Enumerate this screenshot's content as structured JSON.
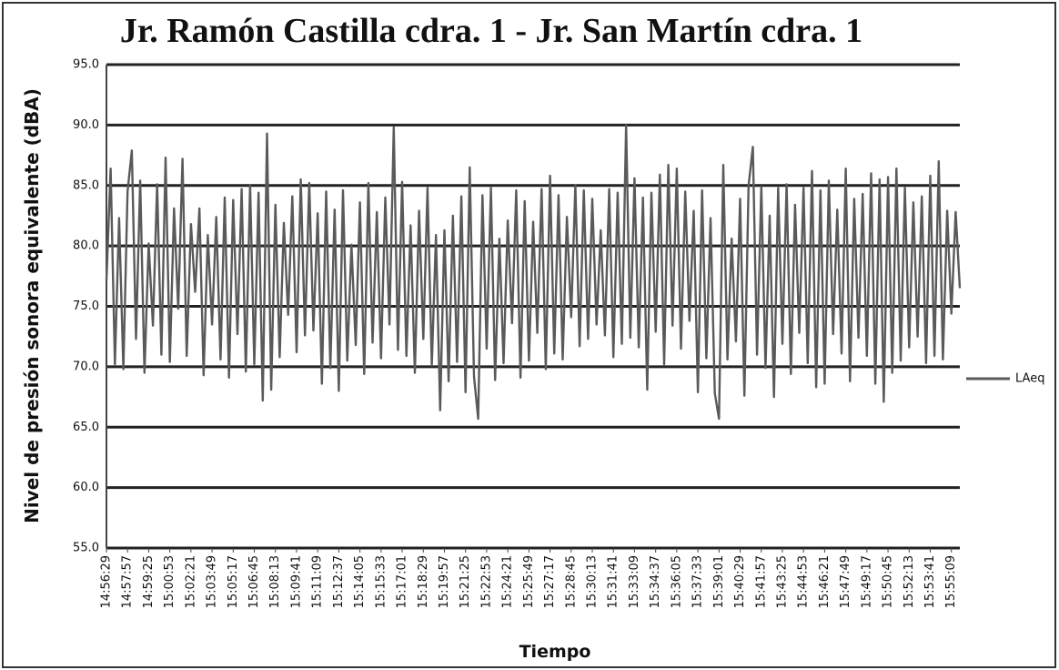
{
  "chart_data": {
    "type": "line",
    "title": "Jr. Ramón Castilla cdra. 1 - Jr. San Martín cdra. 1",
    "x_label": "Tiempo",
    "y_label": "Nivel de presión sonora equivalente (dBA)",
    "categories": [
      "14:56:29",
      null,
      null,
      null,
      null,
      "14:57:57",
      null,
      null,
      null,
      null,
      "14:59:25",
      null,
      null,
      null,
      null,
      "15:00:53",
      null,
      null,
      null,
      null,
      "15:02:21",
      null,
      null,
      null,
      null,
      "15:03:49",
      null,
      null,
      null,
      null,
      "15:05:17",
      null,
      null,
      null,
      null,
      "15:06:45",
      null,
      null,
      null,
      null,
      "15:08:13",
      null,
      null,
      null,
      null,
      "15:09:41",
      null,
      null,
      null,
      null,
      "15:11:09",
      null,
      null,
      null,
      null,
      "15:12:37",
      null,
      null,
      null,
      null,
      "15:14:05",
      null,
      null,
      null,
      null,
      "15:15:33",
      null,
      null,
      null,
      null,
      "15:17:01",
      null,
      null,
      null,
      null,
      "15:18:29",
      null,
      null,
      null,
      null,
      "15:19:57",
      null,
      null,
      null,
      null,
      "15:21:25",
      null,
      null,
      null,
      null,
      "15:22:53",
      null,
      null,
      null,
      null,
      "15:24:21",
      null,
      null,
      null,
      null,
      "15:25:49",
      null,
      null,
      null,
      null,
      "15:27:17",
      null,
      null,
      null,
      null,
      "15:28:45",
      null,
      null,
      null,
      null,
      "15:30:13",
      null,
      null,
      null,
      null,
      "15:31:41",
      null,
      null,
      null,
      null,
      "15:33:09",
      null,
      null,
      null,
      null,
      "15:34:37",
      null,
      null,
      null,
      null,
      "15:36:05",
      null,
      null,
      null,
      null,
      "15:37:33",
      null,
      null,
      null,
      null,
      "15:39:01",
      null,
      null,
      null,
      null,
      "15:40:29",
      null,
      null,
      null,
      null,
      "15:41:57",
      null,
      null,
      null,
      null,
      "15:43:25",
      null,
      null,
      null,
      null,
      "15:44:53",
      null,
      null,
      null,
      null,
      "15:46:21",
      null,
      null,
      null,
      null,
      "15:47:49",
      null,
      null,
      null,
      null,
      "15:49:17",
      null,
      null,
      null,
      null,
      "15:50:45",
      null,
      null,
      null,
      null,
      "15:52:13",
      null,
      null,
      null,
      null,
      "15:53:41",
      null,
      null,
      null,
      null,
      "15:55:09",
      null,
      null
    ],
    "series": [
      {
        "name": "LAeq",
        "color": "#5a5a5a",
        "values": [
          77.1,
          86.4,
          70.2,
          82.3,
          69.8,
          84.5,
          87.9,
          72.3,
          85.4,
          69.5,
          80.2,
          73.4,
          85.1,
          71.0,
          87.3,
          70.4,
          83.1,
          74.8,
          87.2,
          70.9,
          81.8,
          76.2,
          83.1,
          69.3,
          80.9,
          73.5,
          82.4,
          70.6,
          84.0,
          69.1,
          83.8,
          72.7,
          84.7,
          69.6,
          85.0,
          70.2,
          84.4,
          67.2,
          89.3,
          68.1,
          83.4,
          70.8,
          81.9,
          74.3,
          84.1,
          71.2,
          85.5,
          72.6,
          85.2,
          73.0,
          82.7,
          68.6,
          84.5,
          69.9,
          83.0,
          68.0,
          84.6,
          70.5,
          80.1,
          71.8,
          83.6,
          69.4,
          85.2,
          72.0,
          82.8,
          70.7,
          84.0,
          73.5,
          89.8,
          71.4,
          85.3,
          70.9,
          81.7,
          69.5,
          82.9,
          72.3,
          84.8,
          70.1,
          80.9,
          66.4,
          81.3,
          68.8,
          82.5,
          70.4,
          84.1,
          67.9,
          86.5,
          69.2,
          65.7,
          84.2,
          71.5,
          84.8,
          68.9,
          80.6,
          70.3,
          82.1,
          73.6,
          84.6,
          69.1,
          83.7,
          70.5,
          82.0,
          72.8,
          84.7,
          69.8,
          85.8,
          71.1,
          84.2,
          70.6,
          82.4,
          74.1,
          85.0,
          71.7,
          84.6,
          72.3,
          83.9,
          73.5,
          81.3,
          72.6,
          84.7,
          70.8,
          84.4,
          71.9,
          90.0,
          72.4,
          85.6,
          71.6,
          84.0,
          68.1,
          84.4,
          72.9,
          85.9,
          70.2,
          86.7,
          73.4,
          86.4,
          71.5,
          84.5,
          73.8,
          82.9,
          67.9,
          84.6,
          70.7,
          82.3,
          67.8,
          65.7,
          86.7,
          70.6,
          80.6,
          72.1,
          83.9,
          67.6,
          85.0,
          88.2,
          71.0,
          84.9,
          69.9,
          82.5,
          67.5,
          84.8,
          71.9,
          85.1,
          69.4,
          83.4,
          72.8,
          84.8,
          70.3,
          86.2,
          68.3,
          84.6,
          68.6,
          85.4,
          72.7,
          83.0,
          71.1,
          86.4,
          68.8,
          83.9,
          72.4,
          84.3,
          70.9,
          86.0,
          68.6,
          85.5,
          67.1,
          85.7,
          69.5,
          86.4,
          70.5,
          84.8,
          71.6,
          83.6,
          72.5,
          84.1,
          70.3,
          85.8,
          70.9,
          87.0,
          70.6,
          82.9,
          74.4,
          82.8,
          76.5
        ]
      }
    ],
    "ylim": [
      55,
      95
    ],
    "yticks": [
      {
        "value": 55,
        "label": "55.0"
      },
      {
        "value": 60,
        "label": "60.0"
      },
      {
        "value": 65,
        "label": "65.0"
      },
      {
        "value": 70,
        "label": "70.0"
      },
      {
        "value": 75,
        "label": "75.0"
      },
      {
        "value": 80,
        "label": "80.0"
      },
      {
        "value": 85,
        "label": "85.0"
      },
      {
        "value": 90,
        "label": "90.0"
      },
      {
        "value": 95,
        "label": "95.0"
      }
    ],
    "grid": true,
    "legend": "right"
  }
}
